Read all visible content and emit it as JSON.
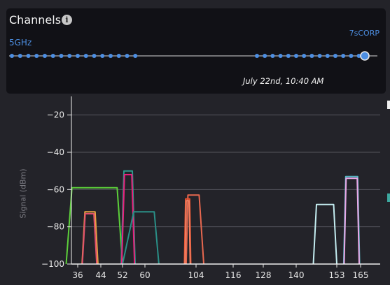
{
  "header": {
    "title": "Channels",
    "info_icon": "info-icon",
    "band": "5GHz",
    "ssid": "7sCORP",
    "timestamp": "July 22nd, 10:40 AM",
    "accent": "#4d8fe3",
    "history_points_left": 16,
    "history_points_right": 14
  },
  "chart_data": {
    "type": "area",
    "title": "",
    "xlabel": "",
    "ylabel": "Signal (dBm)",
    "x_ticks": [
      36,
      44,
      52,
      60,
      104,
      116,
      128,
      140,
      153,
      165
    ],
    "y_ticks": [
      -20,
      -40,
      -60,
      -80,
      -100
    ],
    "xlim": [
      36,
      165
    ],
    "ylim": [
      -100,
      -10
    ],
    "grid": true,
    "series": [
      {
        "color": "#5ccf3a",
        "x": [
          32,
          34,
          50,
          52
        ],
        "y": [
          -100,
          -59,
          -59,
          -100
        ]
      },
      {
        "color": "#e8a142",
        "x": [
          37.5,
          38.5,
          42,
          43
        ],
        "y": [
          -100,
          -72,
          -72,
          -100
        ]
      },
      {
        "color": "#e0506d",
        "x": [
          37.6,
          38.6,
          41.6,
          42.6
        ],
        "y": [
          -100,
          -73,
          -73,
          -100
        ]
      },
      {
        "color": "#2e9a8c",
        "x": [
          51.5,
          52.5,
          55.5,
          56.5
        ],
        "y": [
          -100,
          -50,
          -50,
          -100
        ]
      },
      {
        "color": "#ea1f7c",
        "x": [
          51.7,
          52.7,
          55.3,
          56.3
        ],
        "y": [
          -100,
          -52,
          -52,
          -100
        ]
      },
      {
        "color": "#2a8f87",
        "x": [
          52,
          56,
          68,
          72
        ],
        "y": [
          -100,
          -72,
          -72,
          -100
        ]
      },
      {
        "color": "#e8684f",
        "x": [
          95.5,
          97,
          105,
          106.5
        ],
        "y": [
          -100,
          -63,
          -63,
          -100
        ]
      },
      {
        "color": "#e8502e",
        "x": [
          94,
          95,
          98.5,
          99.5
        ],
        "y": [
          -100,
          -65,
          -65,
          -100
        ]
      },
      {
        "color": "#f08062",
        "x": [
          94.5,
          95.5,
          98,
          99
        ],
        "y": [
          -100,
          -66,
          -66,
          -100
        ]
      },
      {
        "color": "#c3ecf0",
        "x": [
          145.5,
          146.5,
          152,
          153
        ],
        "y": [
          -100,
          -68,
          -68,
          -100
        ]
      },
      {
        "color": "#56b8c4",
        "x": [
          156.5,
          157.5,
          163.5,
          164.5
        ],
        "y": [
          -100,
          -53,
          -53,
          -100
        ]
      },
      {
        "color": "#e9a6e6",
        "x": [
          156.7,
          157.7,
          163.3,
          164.3
        ],
        "y": [
          -100,
          -54,
          -54,
          -100
        ]
      }
    ]
  },
  "edge_marks": [
    {
      "color": "#f0f0f0"
    },
    {
      "color": "#3da9a0"
    }
  ]
}
